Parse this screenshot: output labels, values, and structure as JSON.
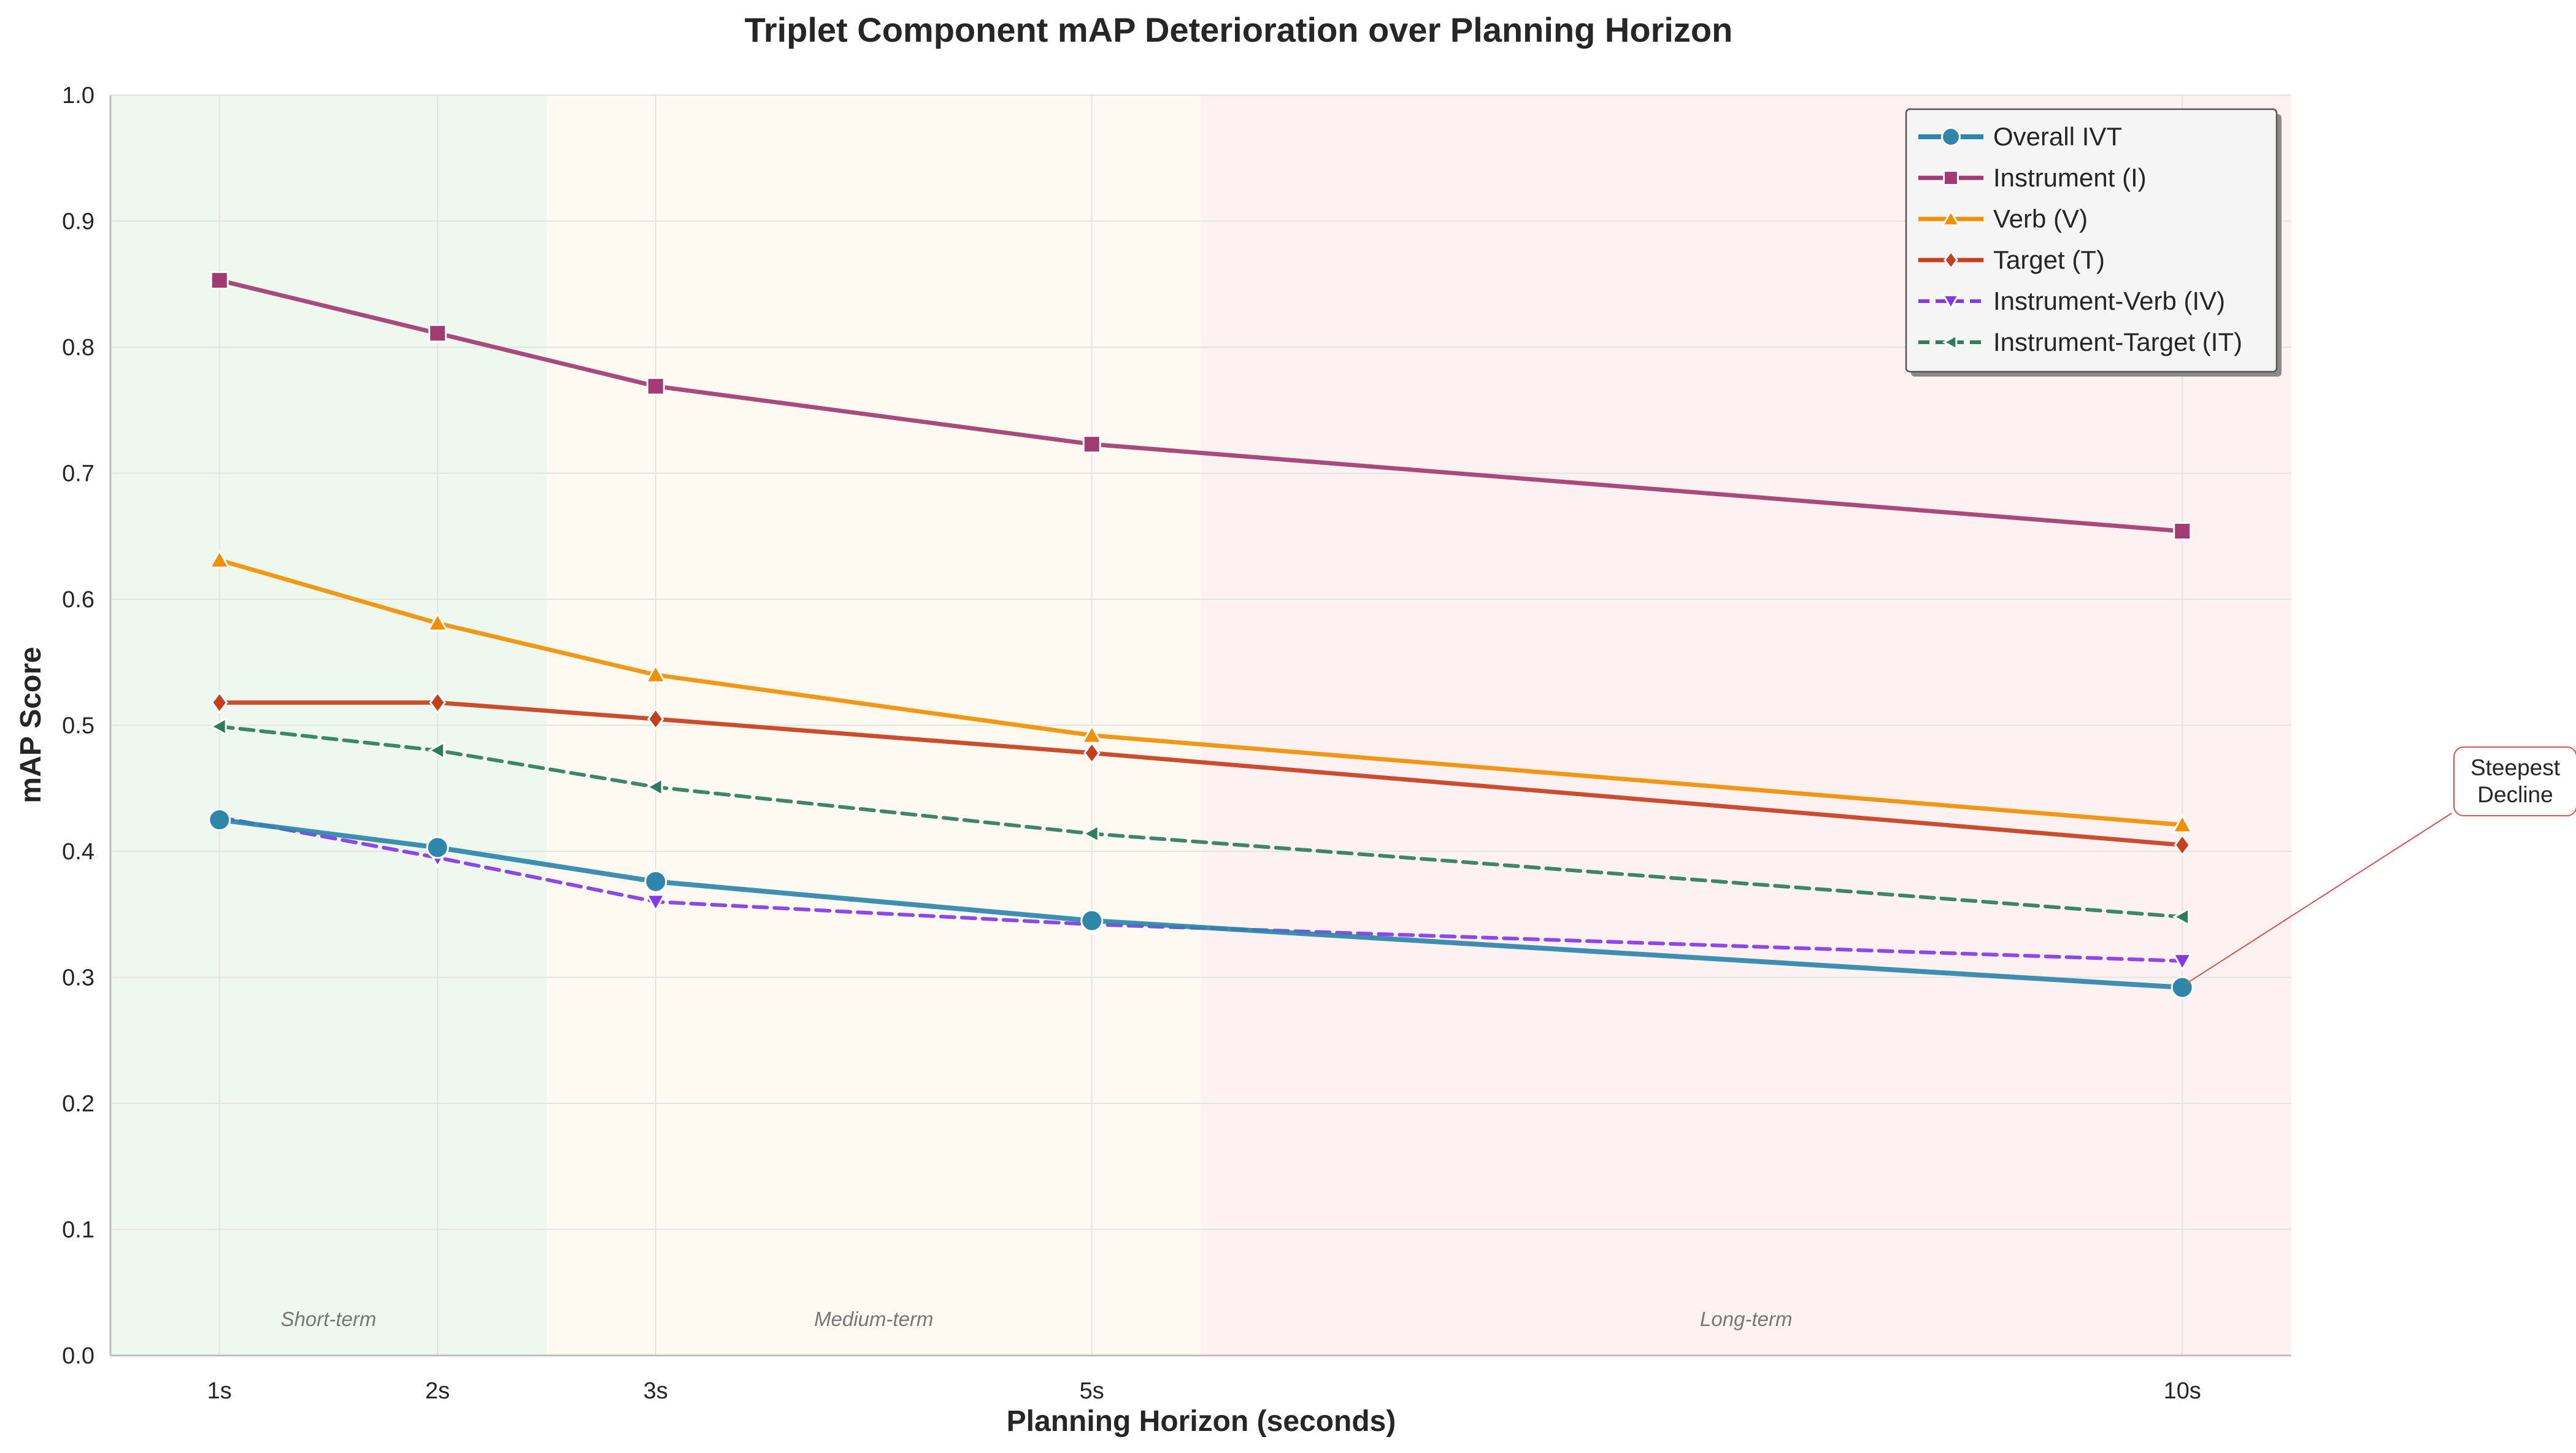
{
  "chart_data": {
    "type": "line",
    "title": "Triplet Component mAP Deterioration over Planning Horizon",
    "xlabel": "Planning Horizon (seconds)",
    "ylabel": "mAP Score",
    "x": [
      1,
      2,
      3,
      5,
      10
    ],
    "x_tick_labels": [
      "1s",
      "2s",
      "3s",
      "5s",
      "10s"
    ],
    "xlim": [
      0.5,
      10.5
    ],
    "ylim": [
      0.0,
      1.0
    ],
    "y_ticks": [
      0.0,
      0.1,
      0.2,
      0.3,
      0.4,
      0.5,
      0.6,
      0.7,
      0.8,
      0.9,
      1.0
    ],
    "y_tick_labels": [
      "0.0",
      "0.1",
      "0.2",
      "0.3",
      "0.4",
      "0.5",
      "0.6",
      "0.7",
      "0.8",
      "0.9",
      "1.0"
    ],
    "grid": true,
    "legend_position": "top-right",
    "series": [
      {
        "name": "Overall IVT",
        "values": [
          0.425,
          0.403,
          0.376,
          0.345,
          0.292
        ],
        "color": "#2e86ab",
        "marker": "circle",
        "dash": "solid",
        "width": 8
      },
      {
        "name": "Instrument (I)",
        "values": [
          0.853,
          0.811,
          0.769,
          0.723,
          0.654
        ],
        "color": "#a23b72",
        "marker": "square",
        "dash": "solid",
        "width": 7
      },
      {
        "name": "Verb (V)",
        "values": [
          0.631,
          0.581,
          0.54,
          0.492,
          0.421
        ],
        "color": "#f18f01",
        "marker": "triangle-up",
        "dash": "solid",
        "width": 7
      },
      {
        "name": "Target (T)",
        "values": [
          0.518,
          0.518,
          0.505,
          0.478,
          0.405
        ],
        "color": "#c73e1d",
        "marker": "diamond",
        "dash": "solid",
        "width": 7
      },
      {
        "name": "Instrument-Verb (IV)",
        "values": [
          0.427,
          0.395,
          0.36,
          0.342,
          0.313
        ],
        "color": "#8338ec",
        "marker": "triangle-down",
        "dash": "dashed",
        "width": 6
      },
      {
        "name": "Instrument-Target (IT)",
        "values": [
          0.499,
          0.48,
          0.451,
          0.414,
          0.348
        ],
        "color": "#2d7d5a",
        "marker": "triangle-left",
        "dash": "dashed",
        "width": 6
      }
    ],
    "bands": [
      {
        "label": "Short-term",
        "from": 0.5,
        "to": 2.5,
        "color": "#e8f5e9",
        "label_at": 1.5
      },
      {
        "label": "Medium-term",
        "from": 2.5,
        "to": 5.5,
        "color": "#fff8ec",
        "label_at": 4.0
      },
      {
        "label": "Long-term",
        "from": 5.5,
        "to": 10.5,
        "color": "#fdeced",
        "label_at": 8.0
      }
    ],
    "annotations": [
      {
        "text_lines": [
          "Steepest",
          "Decline"
        ],
        "point_x": 10,
        "point_y": 0.292,
        "series": "Overall IVT",
        "color": "#e05050"
      }
    ]
  }
}
